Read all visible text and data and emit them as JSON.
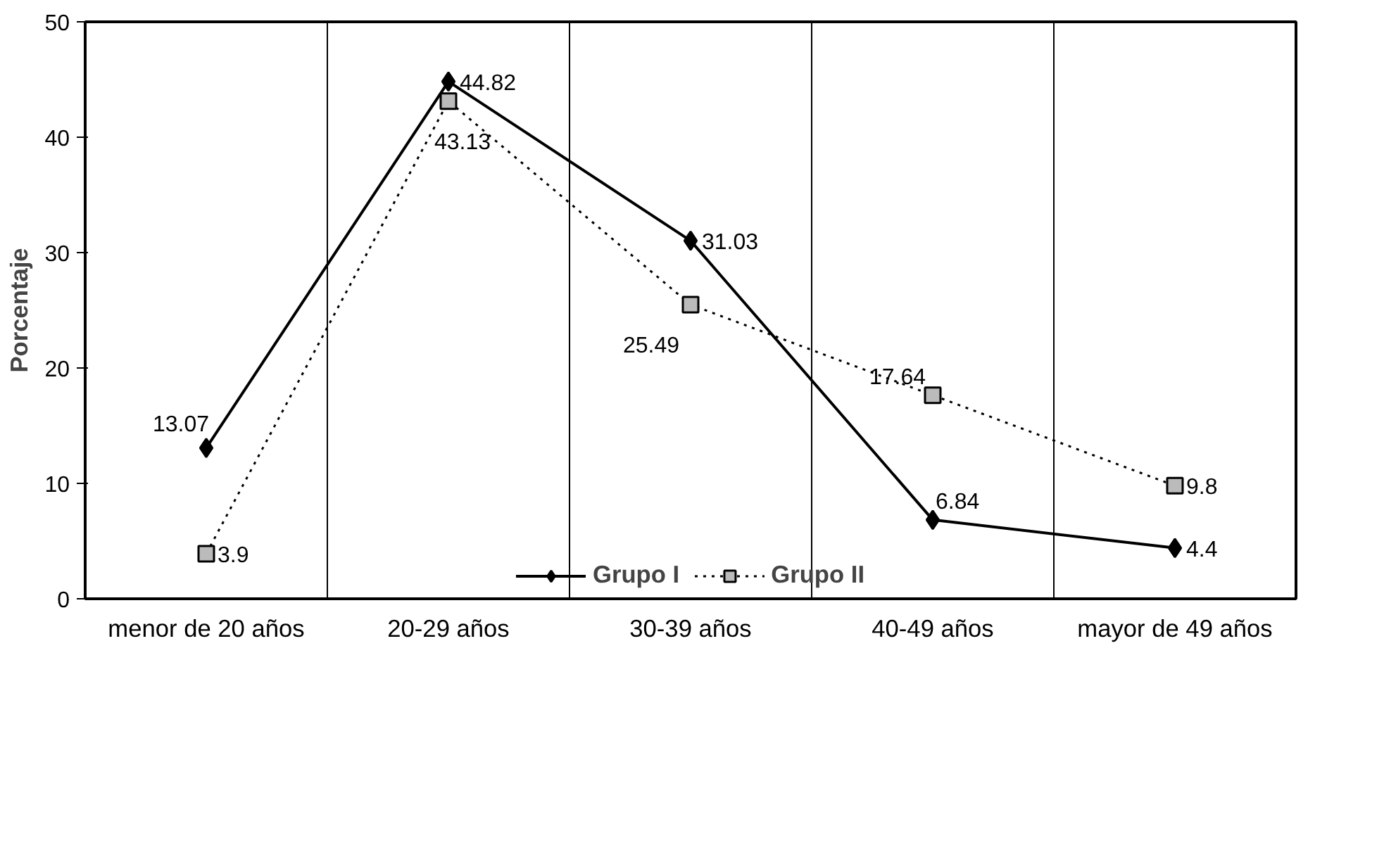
{
  "chart_data": {
    "type": "line",
    "ylabel": "Porcentaje",
    "categories": [
      "menor de 20 años",
      "20-29 años",
      "30-39 años",
      "40-49 años",
      "mayor de 49 años"
    ],
    "series": [
      {
        "name": "Grupo I",
        "color": "#000000",
        "values": [
          13.07,
          44.82,
          31.03,
          6.84,
          4.4
        ],
        "marker": "diamond",
        "line_style": "solid"
      },
      {
        "name": "Grupo II",
        "color": "#000000",
        "values": [
          3.9,
          43.13,
          25.49,
          17.64,
          9.8
        ],
        "marker": "square",
        "line_style": "dotted"
      }
    ],
    "ylim": [
      0,
      50
    ],
    "yticks": [
      0,
      10,
      20,
      30,
      40,
      50
    ],
    "grid": "x",
    "legend": "bottom",
    "data_labels": true
  }
}
